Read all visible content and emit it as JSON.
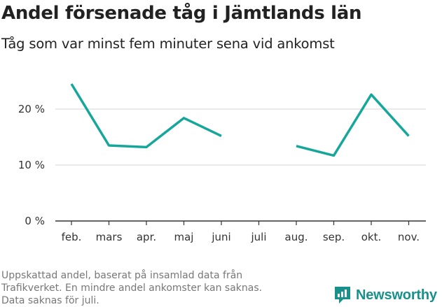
{
  "title": "Andel försenade tåg i Jämtlands län",
  "subtitle": "Tåg som var minst fem minuter sena vid ankomst",
  "footnote": [
    "Uppskattad andel, baserat på insamlad data från",
    "Trafikverket. En mindre andel ankomster kan saknas.",
    "Data saknas för juli."
  ],
  "brand": {
    "name": "Newsworthy",
    "icon": "newsworthy-logo-icon",
    "color": "#17918a"
  },
  "colors": {
    "line": "#17a79a",
    "grid": "#dddddd",
    "axis": "#333333"
  },
  "chart_data": {
    "type": "line",
    "title": "Andel försenade tåg i Jämtlands län",
    "subtitle": "Tåg som var minst fem minuter sena vid ankomst",
    "categories": [
      "feb.",
      "mars",
      "apr.",
      "maj",
      "juni",
      "juli",
      "aug.",
      "sep.",
      "okt.",
      "nov."
    ],
    "series": [
      {
        "values": [
          24.5,
          13.5,
          13.2,
          18.4,
          15.2,
          null,
          13.4,
          11.7,
          22.6,
          15.2
        ]
      }
    ],
    "y_ticks": [
      0,
      10,
      20
    ],
    "y_tick_labels": [
      "0 %",
      "10 %",
      "20 %"
    ],
    "ylim": [
      0,
      25
    ],
    "grid": true,
    "legend": "none"
  }
}
